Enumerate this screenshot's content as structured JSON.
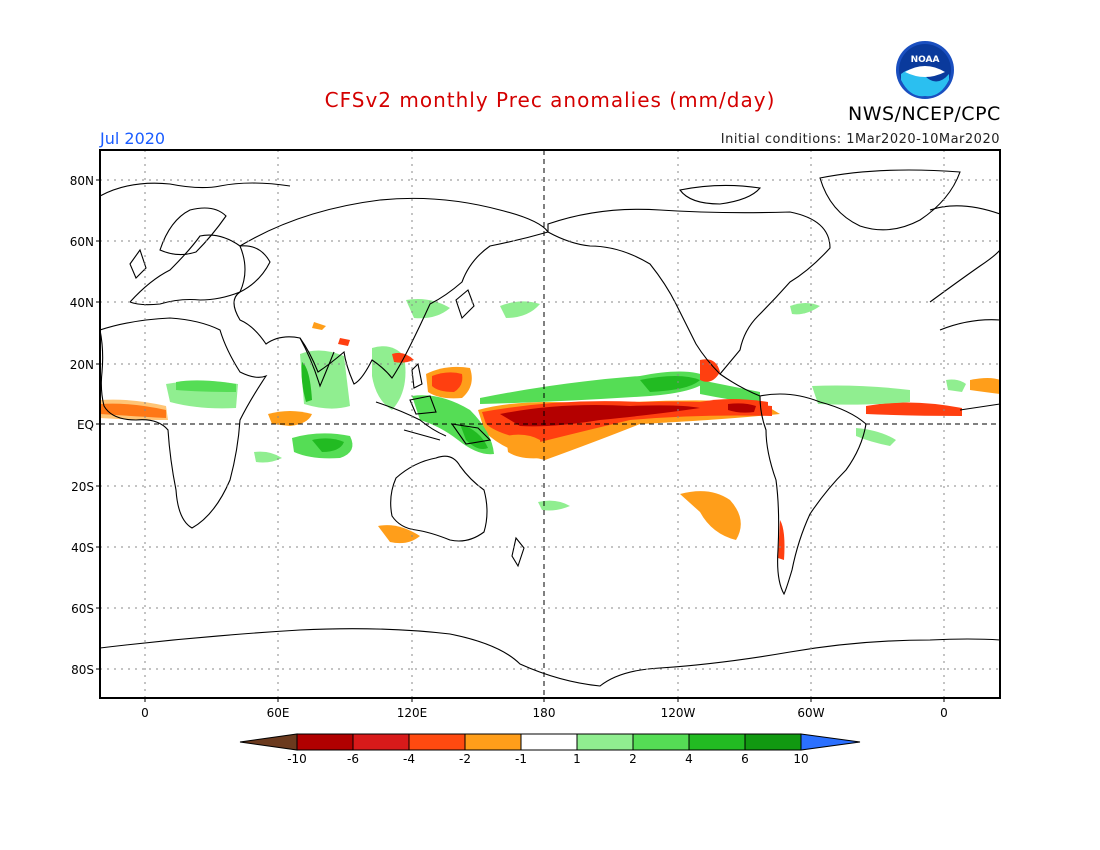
{
  "title": "CFSv2 monthly Prec anomalies (mm/day)",
  "org": "NWS/NCEP/CPC",
  "logo_text": "NOAA",
  "month": "Jul 2020",
  "initial_conditions": "Initial conditions: 1Mar2020-10Mar2020",
  "lat_labels": [
    "80N",
    "60N",
    "40N",
    "20N",
    "EQ",
    "20S",
    "40S",
    "60S",
    "80S"
  ],
  "lon_labels": [
    "0",
    "60E",
    "120E",
    "180",
    "120W",
    "60W",
    "0"
  ],
  "colorbar": {
    "labels": [
      "-10",
      "-6",
      "-4",
      "-2",
      "-1",
      "1",
      "2",
      "4",
      "6",
      "10"
    ],
    "colors": [
      "#6b3a1e",
      "#b00000",
      "#d81a1a",
      "#ff4a10",
      "#ff9e1a",
      "#ffffff",
      "#90ee90",
      "#55dd55",
      "#22bb22",
      "#119911",
      "#2b70ff"
    ]
  },
  "anomaly_colors": {
    "strong_dry": "#b40000",
    "dry": "#ff3f10",
    "mod_dry": "#ff9f1a",
    "wet_light": "#90ee90",
    "wet": "#55dd55",
    "wet_strong": "#22bb22"
  }
}
